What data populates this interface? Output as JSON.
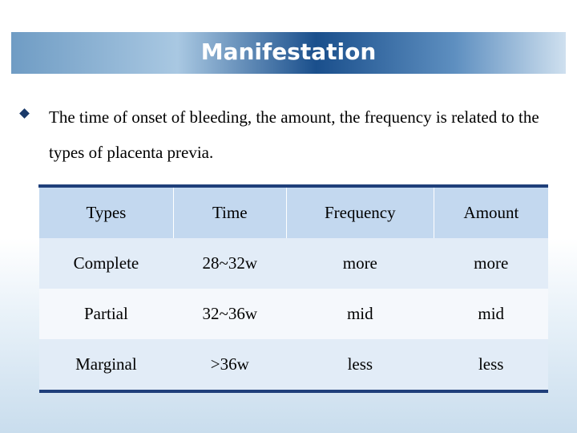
{
  "header": {
    "title": "Manifestation"
  },
  "body": {
    "bullet": "The time of onset of bleeding, the amount, the frequency is related to the types of placenta previa."
  },
  "table": {
    "columns": [
      "Types",
      "Time",
      "Frequency",
      "Amount"
    ],
    "rows": [
      [
        "Complete",
        "28~32w",
        "more",
        "more"
      ],
      [
        "Partial",
        "32~36w",
        "mid",
        "mid"
      ],
      [
        "Marginal",
        ">36w",
        "less",
        "less"
      ]
    ]
  }
}
